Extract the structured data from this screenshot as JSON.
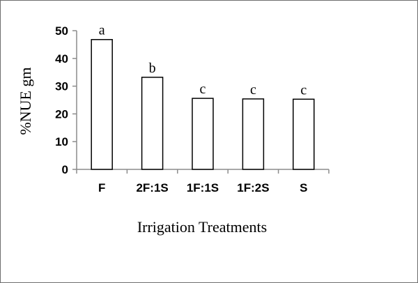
{
  "chart_data": {
    "type": "bar",
    "title": "",
    "xlabel": "Irrigation Treatments",
    "ylabel": "%NUE gm",
    "categories": [
      "F",
      "2F:1S",
      "1F:1S",
      "1F:2S",
      "S"
    ],
    "values": [
      46.8,
      33.2,
      25.6,
      25.4,
      25.3
    ],
    "data_labels": [
      "a",
      "b",
      "c",
      "c",
      "c"
    ],
    "ylim": [
      0,
      50
    ],
    "yticks": [
      0,
      10,
      20,
      30,
      40,
      50
    ],
    "ytick_labels": [
      "0",
      "10",
      "20",
      "30",
      "40",
      "50"
    ],
    "grid": false,
    "legend": "none",
    "colors": {
      "bar_fill": "#ffffff",
      "bar_stroke": "#000000",
      "axis": "#8c8c8c",
      "frame": "#6e6e6e"
    }
  }
}
